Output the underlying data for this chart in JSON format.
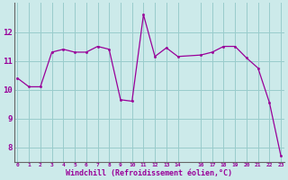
{
  "x": [
    0,
    1,
    2,
    3,
    4,
    5,
    6,
    7,
    8,
    9,
    10,
    11,
    12,
    13,
    14,
    16,
    17,
    18,
    19,
    20,
    21,
    22,
    23
  ],
  "y": [
    10.4,
    10.1,
    10.1,
    11.3,
    11.4,
    11.3,
    11.3,
    11.5,
    11.4,
    9.65,
    9.6,
    12.6,
    11.15,
    11.45,
    11.15,
    11.2,
    11.3,
    11.5,
    11.5,
    11.1,
    10.75,
    9.55,
    7.7
  ],
  "line_color": "#990099",
  "marker_color": "#990099",
  "bg_color": "#cceaea",
  "grid_color": "#99cccc",
  "xlabel": "Windchill (Refroidissement éolien,°C)",
  "xlabel_color": "#990099",
  "tick_color": "#990099",
  "axes_color": "#666666",
  "ylim": [
    7.5,
    13.0
  ],
  "yticks": [
    8,
    9,
    10,
    11,
    12
  ],
  "xticks": [
    0,
    1,
    2,
    3,
    4,
    5,
    6,
    7,
    8,
    9,
    10,
    11,
    12,
    13,
    14,
    16,
    17,
    18,
    19,
    20,
    21,
    22,
    23
  ],
  "xlim": [
    -0.3,
    23.3
  ]
}
